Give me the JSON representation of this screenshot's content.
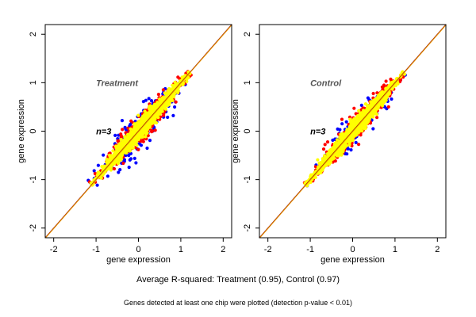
{
  "figure": {
    "caption": "Average R-squared: Treatment (0.95), Control (0.97)",
    "footnote": "Genes detected at least one chip were plotted (detection p-value < 0.01)"
  },
  "chart_data": [
    {
      "type": "scatter",
      "title": "Treatment",
      "annotation": "n=3",
      "xlabel": "gene expression",
      "ylabel": "gene expression",
      "xlim": [
        -2.2,
        2.2
      ],
      "ylim": [
        -2.2,
        2.2
      ],
      "xticks": [
        -2,
        -1,
        0,
        1,
        2
      ],
      "yticks": [
        -2,
        -1,
        0,
        1,
        2
      ],
      "x_extent": [
        -1.1,
        1.2
      ],
      "grid": false,
      "reference_lines": [
        "y = x",
        "y = x"
      ],
      "series_colors": [
        "#0000ff",
        "#ff0000",
        "#ffff00"
      ],
      "series": [
        {
          "color": "#0000ff",
          "spread": 0.17,
          "points": 220
        },
        {
          "color": "#ff0000",
          "spread": 0.13,
          "points": 520
        },
        {
          "color": "#ffff00",
          "spread": 0.08,
          "points": 1300
        }
      ]
    },
    {
      "type": "scatter",
      "title": "Control",
      "annotation": "n=3",
      "xlabel": "gene expression",
      "ylabel": "gene expression",
      "xlim": [
        -2.2,
        2.2
      ],
      "ylim": [
        -2.2,
        2.2
      ],
      "xticks": [
        -2,
        -1,
        0,
        1,
        2
      ],
      "yticks": [
        -2,
        -1,
        0,
        1,
        2
      ],
      "x_extent": [
        -1.1,
        1.2
      ],
      "grid": false,
      "reference_lines": [
        "y = x",
        "y = x"
      ],
      "series_colors": [
        "#0000ff",
        "#ff0000",
        "#ffff00"
      ],
      "series": [
        {
          "color": "#0000ff",
          "spread": 0.14,
          "points": 160
        },
        {
          "color": "#ff0000",
          "spread": 0.11,
          "points": 440
        },
        {
          "color": "#ffff00",
          "spread": 0.07,
          "points": 1300
        }
      ]
    }
  ]
}
